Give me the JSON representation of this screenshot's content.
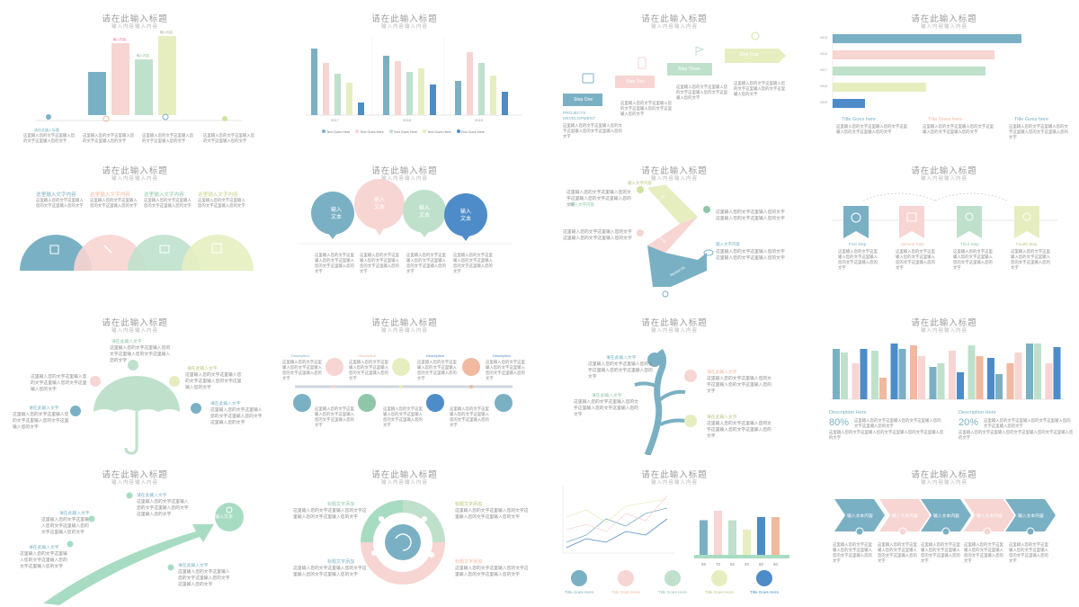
{
  "colors": {
    "blue": "#7ab0c4",
    "pink": "#f7d5d2",
    "green": "#bfe1cc",
    "yellow": "#e6eec0",
    "deep": "#4d8cc8",
    "mint": "#a8dcc2",
    "peach": "#f0b9a0"
  },
  "slide_title": "请在此输入标题",
  "slide_subtitle": "输入内容输入内容",
  "body_text": "这里输入您的文字这里输入您的文字这里输入您的文字",
  "body_text_long": "这里输入您的文字这里输入您的文字这里输入您的文字这里输入您的文字",
  "s1": {
    "bar_labels": [
      "输入内容",
      "输入内容",
      "输入内容",
      "输入内容"
    ],
    "caption": "请在此输入标题"
  },
  "s2": {
    "groups": [
      "2017",
      "2018",
      "2019"
    ],
    "legend": [
      "Text Goes Here",
      "Text Goes Here",
      "Text Goes Here",
      "Text Goes Here",
      "Text Goes Here"
    ]
  },
  "s3": {
    "steps": [
      "Step One",
      "Step Two",
      "Step Three",
      "Step Four"
    ],
    "heading": "PROJECTS\nDEVELOPMENT"
  },
  "s4": {
    "bar_labels": [
      "2015",
      "2016",
      "2017",
      "2018",
      "2019"
    ],
    "titles": [
      "Title Goes here",
      "Title Goes here",
      "Title Goes here"
    ]
  },
  "s5": {
    "headings": [
      "这里输入文字内容",
      "这里输入文字内容",
      "这里输入文字内容",
      "这里输入文字内容"
    ]
  },
  "s6": {
    "bubbles": [
      "输入\n文本",
      "输入\n文本",
      "输入\n文本",
      "输入\n文本"
    ]
  },
  "s7": {
    "headings": [
      "输入文字内容",
      "输入文字内容",
      "输入文字内容"
    ],
    "arrows": [
      "Section 01",
      "Section 02",
      "Section 03"
    ]
  },
  "s8": {
    "steps": [
      "First Step",
      "Second Step",
      "Third Step",
      "Fourth Step"
    ]
  },
  "s9": {
    "headings": [
      "请在此输入文字",
      "请在此输入文字",
      "请在此输入文字",
      "请在此输入文字"
    ]
  },
  "s10": {
    "labels": [
      "Description",
      "Description",
      "Description",
      "Description",
      "Description"
    ]
  },
  "s11": {
    "headings": [
      "请在此输入文字",
      "请在此输入文字",
      "请在此输入文字",
      "请在此输入文字"
    ]
  },
  "s12": {
    "desc": [
      "Description Here",
      "Description Here"
    ],
    "pct": [
      "80%",
      "20%"
    ]
  },
  "s13": {
    "headings": [
      "请在此输入文字",
      "请在此输入文字",
      "请在此输入文字",
      "请在此输入文字"
    ],
    "center": "输入文本"
  },
  "s14": {
    "headings": [
      "标题文字添加",
      "标题文字添加",
      "标题文字添加",
      "标题文字添加"
    ]
  },
  "s15": {
    "titles": [
      "Title Goes Here",
      "Title Goes Here",
      "Title Goes Here",
      "Title Goes Here",
      "Title Goes Here"
    ],
    "bar_values": [
      "55",
      "70",
      "55",
      "40",
      "60",
      "60"
    ]
  },
  "s16": {
    "arrows": [
      "输入文本内容",
      "输入文本内容",
      "输入文本内容",
      "输入文本内容",
      "输入文本内容"
    ]
  }
}
